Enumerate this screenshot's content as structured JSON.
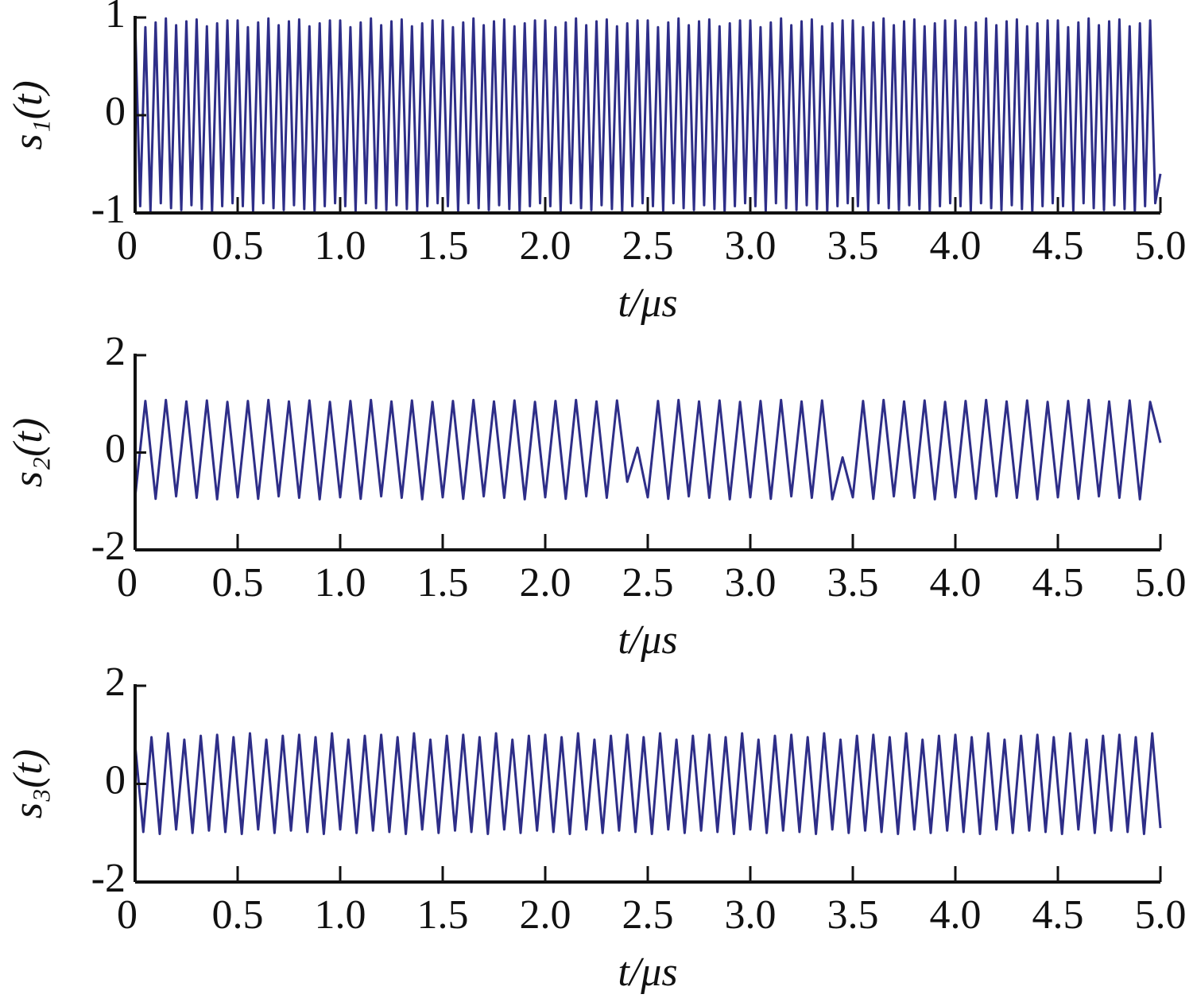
{
  "chart_data": [
    {
      "type": "line",
      "ylabel": "s₁(t)",
      "xlabel": "t/μs",
      "color": "#2e2e88",
      "xlim": [
        0,
        5
      ],
      "ylim": [
        -1,
        1
      ],
      "yticks": [
        -1,
        0,
        1
      ],
      "xticks": [
        0,
        0.5,
        {
          "value": 1,
          "label": "1.0"
        },
        1.5,
        {
          "value": 2,
          "label": "2.0"
        },
        2.5,
        {
          "value": 3,
          "label": "3.0"
        },
        3.5,
        {
          "value": 4,
          "label": "4.0"
        },
        4.5,
        {
          "value": 5,
          "label": "5.0"
        }
      ],
      "x": [
        0,
        0.025,
        0.05,
        0.075,
        0.1,
        0.125,
        0.15,
        0.175,
        0.2,
        0.225,
        0.25,
        0.275,
        0.3,
        0.325,
        0.35,
        0.375,
        0.4,
        0.425,
        0.45,
        0.475,
        0.5,
        0.525,
        0.55,
        0.575,
        0.6,
        0.625,
        0.65,
        0.675,
        0.7,
        0.725,
        0.75,
        0.775,
        0.8,
        0.825,
        0.85,
        0.875,
        0.9,
        0.925,
        0.95,
        0.975,
        1,
        1.025,
        1.05,
        1.075,
        1.1,
        1.125,
        1.15,
        1.175,
        1.2,
        1.225,
        1.25,
        1.275,
        1.3,
        1.325,
        1.35,
        1.375,
        1.4,
        1.425,
        1.45,
        1.475,
        1.5,
        1.525,
        1.55,
        1.575,
        1.6,
        1.625,
        1.65,
        1.675,
        1.7,
        1.725,
        1.75,
        1.775,
        1.8,
        1.825,
        1.85,
        1.875,
        1.9,
        1.925,
        1.95,
        1.975,
        2,
        2.025,
        2.05,
        2.075,
        2.1,
        2.125,
        2.15,
        2.175,
        2.2,
        2.225,
        2.25,
        2.275,
        2.3,
        2.325,
        2.35,
        2.375,
        2.4,
        2.425,
        2.45,
        2.475,
        2.5,
        2.525,
        2.55,
        2.575,
        2.6,
        2.625,
        2.65,
        2.675,
        2.7,
        2.725,
        2.75,
        2.775,
        2.8,
        2.825,
        2.85,
        2.875,
        2.9,
        2.925,
        2.95,
        2.975,
        3,
        3.025,
        3.05,
        3.075,
        3.1,
        3.125,
        3.15,
        3.175,
        3.2,
        3.225,
        3.25,
        3.275,
        3.3,
        3.325,
        3.35,
        3.375,
        3.4,
        3.425,
        3.45,
        3.475,
        3.5,
        3.525,
        3.55,
        3.575,
        3.6,
        3.625,
        3.65,
        3.675,
        3.7,
        3.725,
        3.75,
        3.775,
        3.8,
        3.825,
        3.85,
        3.875,
        3.9,
        3.925,
        3.95,
        3.975,
        4,
        4.025,
        4.05,
        4.075,
        4.1,
        4.125,
        4.15,
        4.175,
        4.2,
        4.225,
        4.25,
        4.275,
        4.3,
        4.325,
        4.35,
        4.375,
        4.4,
        4.425,
        4.45,
        4.475,
        4.5,
        4.525,
        4.55,
        4.575,
        4.6,
        4.625,
        4.65,
        4.675,
        4.7,
        4.725,
        4.75,
        4.775,
        4.8,
        4.825,
        4.85,
        4.875,
        4.9,
        4.925,
        4.95,
        4.975,
        5
      ],
      "values": [
        0.97,
        -0.93,
        0.9,
        -0.98,
        0.95,
        -0.9,
        0.99,
        -0.95,
        0.92,
        -0.97,
        0.96,
        -0.92,
        0.98,
        -0.96,
        0.91,
        -0.99,
        0.94,
        -0.93,
        0.97,
        -0.9,
        0.97,
        -0.93,
        0.9,
        -0.98,
        0.95,
        -0.9,
        0.99,
        -0.95,
        0.92,
        -0.97,
        0.96,
        -0.92,
        0.98,
        -0.96,
        0.91,
        -0.99,
        0.94,
        -0.93,
        0.97,
        -0.9,
        0.97,
        -0.93,
        0.9,
        -0.98,
        0.95,
        -0.9,
        0.99,
        -0.95,
        0.92,
        -0.97,
        0.96,
        -0.92,
        0.98,
        -0.96,
        0.91,
        -0.99,
        0.94,
        -0.93,
        0.97,
        -0.9,
        0.97,
        -0.93,
        0.9,
        -0.98,
        0.95,
        -0.9,
        0.99,
        -0.95,
        0.92,
        -0.97,
        0.96,
        -0.92,
        0.98,
        -0.96,
        0.91,
        -0.99,
        0.94,
        -0.93,
        0.97,
        -0.9,
        0.97,
        -0.93,
        0.9,
        -0.98,
        0.95,
        -0.9,
        0.99,
        -0.95,
        0.92,
        -0.97,
        0.96,
        -0.92,
        0.98,
        -0.96,
        0.91,
        -0.99,
        0.94,
        -0.93,
        0.97,
        -0.9,
        0.97,
        -0.93,
        0.9,
        -0.98,
        0.95,
        -0.9,
        0.99,
        -0.95,
        0.92,
        -0.97,
        0.96,
        -0.92,
        0.98,
        -0.96,
        0.91,
        -0.99,
        0.94,
        -0.93,
        0.97,
        -0.9,
        0.97,
        -0.93,
        0.9,
        -0.98,
        0.95,
        -0.9,
        0.99,
        -0.95,
        0.92,
        -0.97,
        0.96,
        -0.92,
        0.98,
        -0.96,
        0.91,
        -0.99,
        0.94,
        -0.93,
        0.97,
        -0.9,
        0.97,
        -0.93,
        0.9,
        -0.98,
        0.95,
        -0.9,
        0.99,
        -0.95,
        0.92,
        -0.97,
        0.96,
        -0.92,
        0.98,
        -0.96,
        0.91,
        -0.99,
        0.94,
        -0.93,
        0.97,
        -0.9,
        0.97,
        -0.93,
        0.9,
        -0.98,
        0.95,
        -0.9,
        0.99,
        -0.95,
        0.92,
        -0.97,
        0.96,
        -0.92,
        0.98,
        -0.96,
        0.91,
        -0.99,
        0.94,
        -0.93,
        0.97,
        -0.9,
        0.97,
        -0.93,
        0.9,
        -0.98,
        0.95,
        -0.9,
        0.99,
        -0.95,
        0.92,
        -0.97,
        0.96,
        -0.92,
        0.98,
        -0.96,
        0.91,
        -0.99,
        0.94,
        -0.93,
        0.97,
        -0.9,
        -0.6
      ]
    },
    {
      "type": "line",
      "ylabel": "s₂(t)",
      "xlabel": "t/μs",
      "color": "#2e2e88",
      "xlim": [
        0,
        5
      ],
      "ylim": [
        -2,
        2
      ],
      "yticks": [
        -2,
        0,
        2
      ],
      "xticks": [
        0,
        0.5,
        {
          "value": 1,
          "label": "1.0"
        },
        1.5,
        {
          "value": 2,
          "label": "2.0"
        },
        2.5,
        {
          "value": 3,
          "label": "3.0"
        },
        3.5,
        {
          "value": 4,
          "label": "4.0"
        },
        4.5,
        {
          "value": 5,
          "label": "5.0"
        }
      ],
      "x": [
        0,
        0.05,
        0.1,
        0.15,
        0.2,
        0.25,
        0.3,
        0.35,
        0.4,
        0.45,
        0.5,
        0.55,
        0.6,
        0.65,
        0.7,
        0.75,
        0.8,
        0.85,
        0.9,
        0.95,
        1,
        1.05,
        1.1,
        1.15,
        1.2,
        1.25,
        1.3,
        1.35,
        1.4,
        1.45,
        1.5,
        1.55,
        1.6,
        1.65,
        1.7,
        1.75,
        1.8,
        1.85,
        1.9,
        1.95,
        2,
        2.05,
        2.1,
        2.15,
        2.2,
        2.25,
        2.3,
        2.35,
        2.4,
        2.45,
        2.5,
        2.55,
        2.6,
        2.65,
        2.7,
        2.75,
        2.8,
        2.85,
        2.9,
        2.95,
        3,
        3.05,
        3.1,
        3.15,
        3.2,
        3.25,
        3.3,
        3.35,
        3.4,
        3.45,
        3.5,
        3.55,
        3.6,
        3.65,
        3.7,
        3.75,
        3.8,
        3.85,
        3.9,
        3.95,
        4,
        4.05,
        4.1,
        4.15,
        4.2,
        4.25,
        4.3,
        4.35,
        4.4,
        4.45,
        4.5,
        4.55,
        4.6,
        4.65,
        4.7,
        4.75,
        4.8,
        4.85,
        4.9,
        4.95,
        5
      ],
      "values": [
        -0.92,
        1.06,
        -0.95,
        1.08,
        -0.9,
        1.05,
        -0.93,
        1.07,
        -0.96,
        1.04,
        -0.92,
        1.06,
        -0.95,
        1.08,
        -0.9,
        1.05,
        -0.93,
        1.07,
        -0.96,
        1.04,
        -0.92,
        1.06,
        -0.95,
        1.08,
        -0.9,
        1.05,
        -0.93,
        1.07,
        -0.96,
        1.04,
        -0.92,
        1.06,
        -0.95,
        1.08,
        -0.9,
        1.05,
        -0.93,
        1.07,
        -0.96,
        1.04,
        -0.92,
        1.06,
        -0.95,
        1.08,
        -0.9,
        1.05,
        -0.93,
        1.07,
        -0.6,
        0.1,
        -0.92,
        1.06,
        -0.95,
        1.08,
        -0.9,
        1.05,
        -0.93,
        1.07,
        -0.96,
        1.04,
        -0.92,
        1.06,
        -0.95,
        1.08,
        -0.9,
        1.05,
        -0.93,
        1.07,
        -0.96,
        -0.1,
        -0.92,
        1.06,
        -0.95,
        1.08,
        -0.9,
        1.05,
        -0.93,
        1.07,
        -0.96,
        1.04,
        -0.92,
        1.06,
        -0.95,
        1.08,
        -0.9,
        1.05,
        -0.93,
        1.07,
        -0.96,
        1.04,
        -0.92,
        1.06,
        -0.95,
        1.08,
        -0.9,
        1.05,
        -0.93,
        1.07,
        -0.96,
        1.04,
        0.2
      ]
    },
    {
      "type": "line",
      "ylabel": "s₃(t)",
      "xlabel": "t/μs",
      "color": "#2e2e88",
      "xlim": [
        0,
        5
      ],
      "ylim": [
        -2,
        2
      ],
      "yticks": [
        -2,
        0,
        2
      ],
      "xticks": [
        0,
        0.5,
        {
          "value": 1,
          "label": "1.0"
        },
        1.5,
        {
          "value": 2,
          "label": "2.0"
        },
        2.5,
        {
          "value": 3,
          "label": "3.0"
        },
        3.5,
        {
          "value": 4,
          "label": "4.0"
        },
        4.5,
        {
          "value": 5,
          "label": "5.0"
        }
      ],
      "x": [
        0,
        0.04,
        0.08,
        0.12,
        0.16,
        0.2,
        0.24,
        0.28,
        0.32,
        0.36,
        0.4,
        0.44,
        0.48,
        0.52,
        0.56,
        0.6,
        0.64,
        0.68,
        0.72,
        0.76,
        0.8,
        0.84,
        0.88,
        0.92,
        0.96,
        1,
        1.04,
        1.08,
        1.12,
        1.16,
        1.2,
        1.24,
        1.28,
        1.32,
        1.36,
        1.4,
        1.44,
        1.48,
        1.52,
        1.56,
        1.6,
        1.64,
        1.68,
        1.72,
        1.76,
        1.8,
        1.84,
        1.88,
        1.92,
        1.96,
        2,
        2.04,
        2.08,
        2.12,
        2.16,
        2.2,
        2.24,
        2.28,
        2.32,
        2.36,
        2.4,
        2.44,
        2.48,
        2.52,
        2.56,
        2.6,
        2.64,
        2.68,
        2.72,
        2.76,
        2.8,
        2.84,
        2.88,
        2.92,
        2.96,
        3,
        3.04,
        3.08,
        3.12,
        3.16,
        3.2,
        3.24,
        3.28,
        3.32,
        3.36,
        3.4,
        3.44,
        3.48,
        3.52,
        3.56,
        3.6,
        3.64,
        3.68,
        3.72,
        3.76,
        3.8,
        3.84,
        3.88,
        3.92,
        3.96,
        4,
        4.04,
        4.08,
        4.12,
        4.16,
        4.2,
        4.24,
        4.28,
        4.32,
        4.36,
        4.4,
        4.44,
        4.48,
        4.52,
        4.56,
        4.6,
        4.64,
        4.68,
        4.72,
        4.76,
        4.8,
        4.84,
        4.88,
        4.92,
        4.96,
        5
      ],
      "values": [
        0.8,
        -0.98,
        0.95,
        -1.02,
        1.03,
        -0.93,
        0.9,
        -1.0,
        0.98,
        -0.95,
        1.0,
        -0.98,
        0.95,
        -1.02,
        1.03,
        -0.93,
        0.9,
        -1.0,
        0.98,
        -0.95,
        1.0,
        -0.98,
        0.95,
        -1.02,
        1.03,
        -0.93,
        0.9,
        -1.0,
        0.98,
        -0.95,
        1.0,
        -0.98,
        0.95,
        -1.02,
        1.03,
        -0.93,
        0.9,
        -1.0,
        0.98,
        -0.95,
        1.0,
        -0.98,
        0.95,
        -1.02,
        1.03,
        -0.93,
        0.9,
        -1.0,
        0.98,
        -0.95,
        1.0,
        -0.98,
        0.95,
        -1.02,
        1.03,
        -0.93,
        0.9,
        -1.0,
        0.98,
        -0.95,
        1.0,
        -0.98,
        0.95,
        -1.02,
        1.03,
        -0.93,
        0.9,
        -1.0,
        0.98,
        -0.95,
        1.0,
        -0.98,
        0.95,
        -1.02,
        1.03,
        -0.93,
        0.9,
        -1.0,
        0.98,
        -0.95,
        1.0,
        -0.98,
        0.95,
        -1.02,
        1.03,
        -0.93,
        0.9,
        -1.0,
        0.98,
        -0.95,
        1.0,
        -0.98,
        0.95,
        -1.02,
        1.03,
        -0.93,
        0.9,
        -1.0,
        0.98,
        -0.95,
        1.0,
        -0.98,
        0.95,
        -1.02,
        1.03,
        -0.93,
        0.9,
        -1.0,
        0.98,
        -0.95,
        1.0,
        -0.98,
        0.95,
        -1.02,
        1.03,
        -0.93,
        0.9,
        -1.0,
        0.98,
        -0.95,
        1.0,
        -0.98,
        0.95,
        -1.02,
        1.03,
        -0.9
      ]
    }
  ]
}
